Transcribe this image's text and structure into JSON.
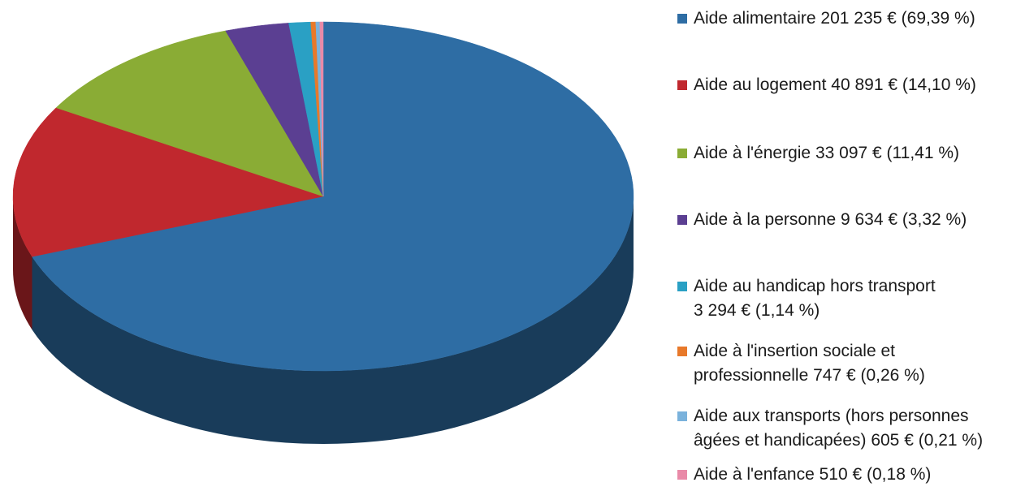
{
  "chart_data": {
    "type": "pie",
    "title": "",
    "slices": [
      {
        "label": "Aide alimentaire",
        "value": 201235,
        "percent": 69.39,
        "color": "#2e6da4",
        "legend_text": "Aide alimentaire 201 235 € (69,39 %)"
      },
      {
        "label": "Aide au logement",
        "value": 40891,
        "percent": 14.1,
        "color": "#c0282e",
        "legend_text": "Aide au logement 40 891 € (14,10 %)"
      },
      {
        "label": "Aide à l'énergie",
        "value": 33097,
        "percent": 11.41,
        "color": "#8aac35",
        "legend_text": "Aide à l'énergie 33 097 € (11,41 %)"
      },
      {
        "label": "Aide à la personne",
        "value": 9634,
        "percent": 3.32,
        "color": "#5b3f92",
        "legend_text": "Aide à la personne 9 634 € (3,32 %)"
      },
      {
        "label": "Aide au handicap hors transport",
        "value": 3294,
        "percent": 1.14,
        "color": "#2aa0c4",
        "legend_text": "Aide au handicap hors transport\n3 294 € (1,14 %)"
      },
      {
        "label": "Aide à l'insertion sociale et professionnelle",
        "value": 747,
        "percent": 0.26,
        "color": "#e8792a",
        "legend_text": "Aide à l'insertion sociale et\nprofessionnelle 747 € (0,26 %)"
      },
      {
        "label": "Aide aux transports (hors personnes âgées et handicapées)",
        "value": 605,
        "percent": 0.21,
        "color": "#7ab2dc",
        "legend_text": "Aide aux transports (hors personnes\nâgées et handicapées) 605 € (0,21 %)"
      },
      {
        "label": "Aide à l'enfance",
        "value": 510,
        "percent": 0.18,
        "color": "#e98aa8",
        "legend_text": "Aide à l'enfance 510 € (0,18 %)"
      }
    ],
    "legend_position": "right",
    "style": "3d"
  }
}
